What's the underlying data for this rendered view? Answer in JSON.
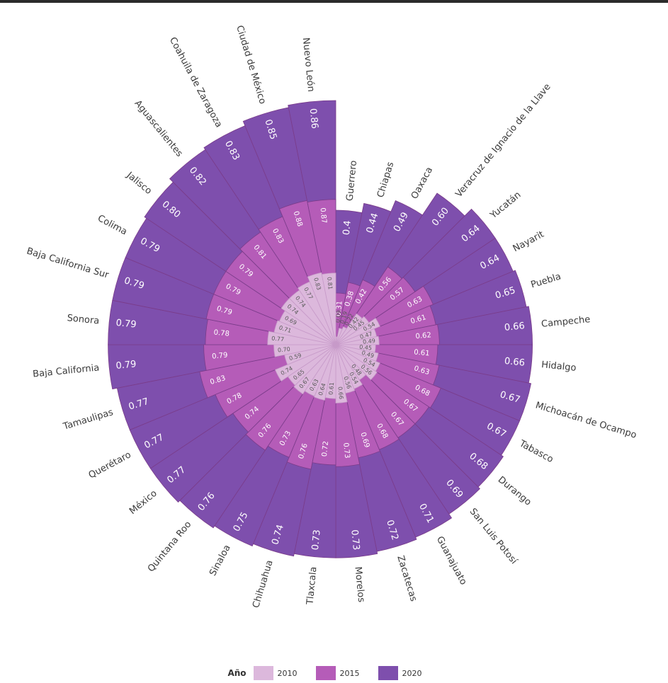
{
  "colors": {
    "y2010": "#dcb8dc",
    "y2015": "#b55cb8",
    "y2020": "#7e4fad",
    "stroke": "#7a3c8a"
  },
  "legend": {
    "title": "Año",
    "items": [
      {
        "label": "2010"
      },
      {
        "label": "2015"
      },
      {
        "label": "2020"
      }
    ]
  },
  "chart_data": {
    "type": "radial-bar",
    "series_years": [
      "2010",
      "2015",
      "2020"
    ],
    "categories": [
      "Guerrero",
      "Chiapas",
      "Oaxaca",
      "Veracruz de Ignacio de la Llave",
      "Yucatán",
      "Nayarit",
      "Puebla",
      "Campeche",
      "Hidalgo",
      "Michoacán de Ocampo",
      "Tabasco",
      "Durango",
      "San Luis Potosí",
      "Guanajuato",
      "Zacatecas",
      "Morelos",
      "Tlaxcala",
      "Chihuahua",
      "Sinaloa",
      "Quintana Roo",
      "México",
      "Querétaro",
      "Tamaulipas",
      "Baja California",
      "Sonora",
      "Baja California Sur",
      "Colima",
      "Jalisco",
      "Aguascalientes",
      "Coahuila de Zaragoza",
      "Ciudad de México",
      "Nuevo León"
    ],
    "values_2010": [
      "0.09",
      "0.19",
      "0.22",
      "0.42",
      "0.45",
      "0.54",
      "0.47",
      "0.49",
      "0.45",
      "0.49",
      "0.54",
      "0.56",
      "0.48",
      "0.54",
      "0.56",
      "0.66",
      "0.61",
      "0.64",
      "0.63",
      "0.67",
      "0.65",
      "0.74",
      "0.59",
      "0.70",
      "0.77",
      "0.71",
      "0.69",
      "0.74",
      "0.74",
      "0.77",
      "0.83",
      "0.81"
    ],
    "values_2015": [
      "0.31",
      "0.38",
      "0.42",
      "0.56",
      "0.57",
      "0.63",
      "0.61",
      "0.62",
      "0.61",
      "0.63",
      "0.68",
      "0.67",
      "0.67",
      "0.68",
      "0.69",
      "0.73",
      "0.72",
      "0.76",
      "0.73",
      "0.76",
      "0.74",
      "0.78",
      "0.83",
      "0.79",
      "0.78",
      "0.79",
      "0.79",
      "0.79",
      "0.81",
      "0.83",
      "0.88",
      "0.87"
    ],
    "values_2020": [
      "0.4",
      "0.44",
      "0.49",
      "0.60",
      "0.64",
      "0.64",
      "0.65",
      "0.66",
      "0.66",
      "0.67",
      "0.67",
      "0.68",
      "0.69",
      "0.71",
      "0.72",
      "0.73",
      "0.73",
      "0.74",
      "0.75",
      "0.76",
      "0.77",
      "0.77",
      "0.77",
      "0.79",
      "0.79",
      "0.79",
      "0.79",
      "0.80",
      "0.82",
      "0.83",
      "0.85",
      "0.86"
    ]
  }
}
